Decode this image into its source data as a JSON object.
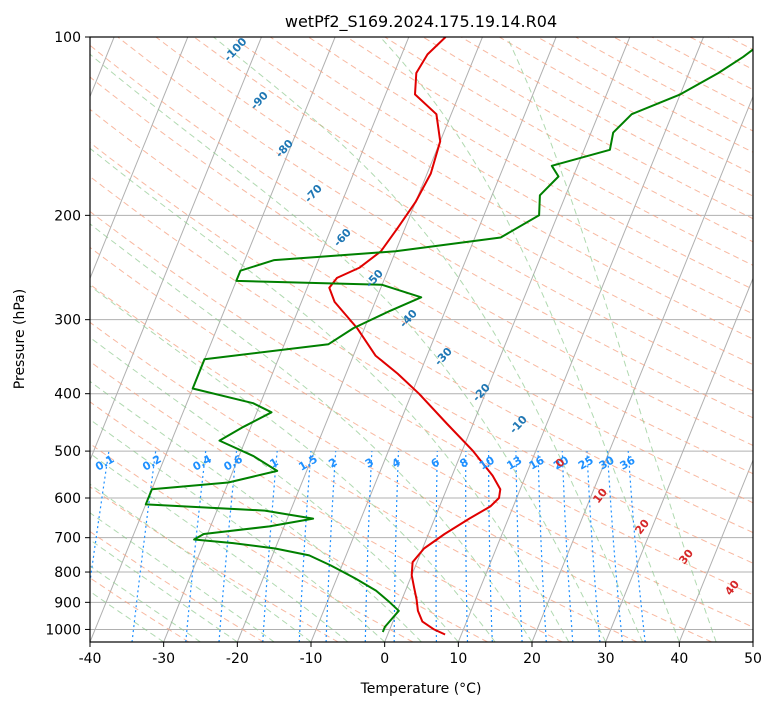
{
  "chart_data": {
    "type": "line",
    "title": "wetPf2_S169.2024.175.19.14.R04",
    "xlabel": "Temperature (°C)",
    "ylabel": "Pressure (hPa)",
    "xlim": [
      -40,
      50
    ],
    "ylim": [
      1050,
      100
    ],
    "y_scale": "log",
    "skew": true,
    "grid": true,
    "x_ticks": [
      -40,
      -30,
      -20,
      -10,
      0,
      10,
      20,
      30,
      40,
      50
    ],
    "y_ticks": [
      100,
      200,
      300,
      400,
      500,
      600,
      700,
      800,
      900,
      1000
    ],
    "series": [
      {
        "color": "#e00000",
        "points": [
          {
            "p": 1020,
            "t": 7.8
          },
          {
            "p": 1000,
            "t": 6.0
          },
          {
            "p": 970,
            "t": 4.0
          },
          {
            "p": 930,
            "t": 2.8
          },
          {
            "p": 890,
            "t": 2.0
          },
          {
            "p": 850,
            "t": 1.0
          },
          {
            "p": 810,
            "t": 0.0
          },
          {
            "p": 770,
            "t": -0.6
          },
          {
            "p": 730,
            "t": 0.2
          },
          {
            "p": 690,
            "t": 2.2
          },
          {
            "p": 650,
            "t": 4.7
          },
          {
            "p": 620,
            "t": 6.9
          },
          {
            "p": 600,
            "t": 7.6
          },
          {
            "p": 580,
            "t": 7.3
          },
          {
            "p": 550,
            "t": 5.5
          },
          {
            "p": 500,
            "t": 1.5
          },
          {
            "p": 450,
            "t": -3.5
          },
          {
            "p": 400,
            "t": -9.0
          },
          {
            "p": 370,
            "t": -13.0
          },
          {
            "p": 345,
            "t": -17.0
          },
          {
            "p": 310,
            "t": -21.0
          },
          {
            "p": 280,
            "t": -25.5
          },
          {
            "p": 265,
            "t": -27.0
          },
          {
            "p": 255,
            "t": -26.5
          },
          {
            "p": 245,
            "t": -24.0
          },
          {
            "p": 230,
            "t": -22.0
          },
          {
            "p": 210,
            "t": -21.0
          },
          {
            "p": 190,
            "t": -20.0
          },
          {
            "p": 170,
            "t": -19.5
          },
          {
            "p": 150,
            "t": -20.0
          },
          {
            "p": 135,
            "t": -22.0
          },
          {
            "p": 125,
            "t": -26.0
          },
          {
            "p": 115,
            "t": -27.0
          },
          {
            "p": 107,
            "t": -26.5
          },
          {
            "p": 100,
            "t": -25.0
          }
        ]
      },
      {
        "color": "#008000",
        "points": [
          {
            "p": 1010,
            "t": -0.8
          },
          {
            "p": 990,
            "t": -0.8
          },
          {
            "p": 960,
            "t": -0.3
          },
          {
            "p": 930,
            "t": 0.2
          },
          {
            "p": 900,
            "t": -1.5
          },
          {
            "p": 860,
            "t": -4.0
          },
          {
            "p": 820,
            "t": -7.5
          },
          {
            "p": 780,
            "t": -11.5
          },
          {
            "p": 750,
            "t": -15.0
          },
          {
            "p": 730,
            "t": -20.0
          },
          {
            "p": 715,
            "t": -26.0
          },
          {
            "p": 705,
            "t": -31.5
          },
          {
            "p": 690,
            "t": -30.5
          },
          {
            "p": 670,
            "t": -22.0
          },
          {
            "p": 650,
            "t": -16.5
          },
          {
            "p": 630,
            "t": -23.5
          },
          {
            "p": 615,
            "t": -40.0
          },
          {
            "p": 580,
            "t": -40.0
          },
          {
            "p": 565,
            "t": -30.0
          },
          {
            "p": 540,
            "t": -24.0
          },
          {
            "p": 510,
            "t": -28.0
          },
          {
            "p": 480,
            "t": -33.5
          },
          {
            "p": 455,
            "t": -31.0
          },
          {
            "p": 430,
            "t": -28.0
          },
          {
            "p": 415,
            "t": -31.0
          },
          {
            "p": 392,
            "t": -40.0
          },
          {
            "p": 350,
            "t": -40.0
          },
          {
            "p": 330,
            "t": -24.0
          },
          {
            "p": 310,
            "t": -21.5
          },
          {
            "p": 290,
            "t": -17.5
          },
          {
            "p": 275,
            "t": -14.0
          },
          {
            "p": 262,
            "t": -20.0
          },
          {
            "p": 258,
            "t": -40.0
          },
          {
            "p": 248,
            "t": -40.0
          },
          {
            "p": 238,
            "t": -36.0
          },
          {
            "p": 230,
            "t": -20.0
          },
          {
            "p": 218,
            "t": -6.5
          },
          {
            "p": 200,
            "t": -2.5
          },
          {
            "p": 185,
            "t": -3.5
          },
          {
            "p": 172,
            "t": -2.0
          },
          {
            "p": 165,
            "t": -3.5
          },
          {
            "p": 155,
            "t": 3.5
          },
          {
            "p": 145,
            "t": 3.0
          },
          {
            "p": 135,
            "t": 4.5
          },
          {
            "p": 125,
            "t": 10.0
          },
          {
            "p": 115,
            "t": 14.0
          },
          {
            "p": 108,
            "t": 16.5
          },
          {
            "p": 100,
            "t": 19.0
          }
        ]
      }
    ],
    "annotations": {
      "mixing_ratio_labels": [
        "0.1",
        "0.2",
        "0.4",
        "0.6",
        "1",
        "1.5",
        "2",
        "3",
        "4",
        "6",
        "8",
        "10",
        "13",
        "16",
        "20",
        "25",
        "30",
        "36"
      ],
      "dry_adiabat_labels": [
        "-100",
        "-90",
        "-80",
        "-70",
        "-60",
        "-50",
        "-40",
        "-30",
        "-20",
        "-10"
      ],
      "moist_adiabat_labels": [
        "0",
        "10",
        "20",
        "30",
        "40"
      ]
    }
  }
}
